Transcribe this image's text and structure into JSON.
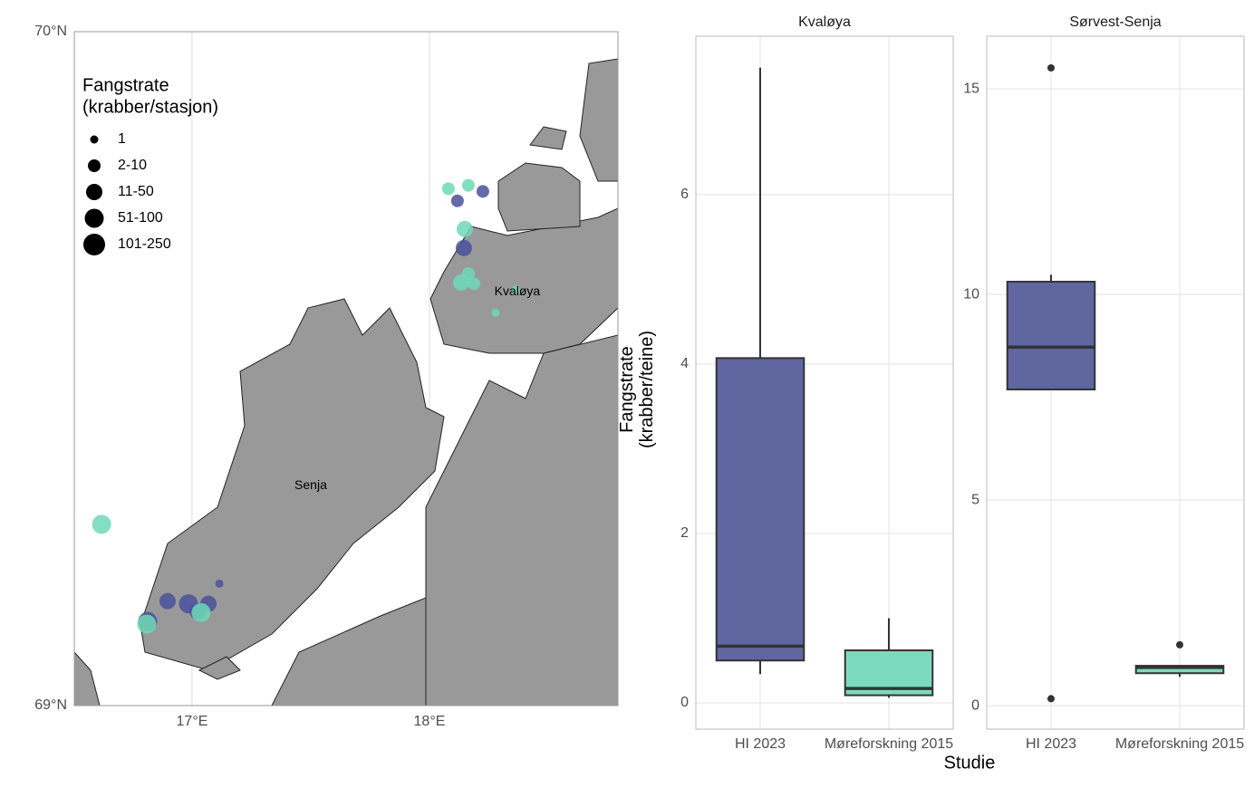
{
  "chart_data": [
    {
      "type": "map",
      "xlim": [
        16.504,
        18.794
      ],
      "ylim": [
        69,
        70
      ],
      "xticks": [
        {
          "value": 17,
          "label": "17°E"
        },
        {
          "value": 18,
          "label": "18°E"
        }
      ],
      "yticks": [
        {
          "value": 69,
          "label": "69°N"
        },
        {
          "value": 70,
          "label": "70°N"
        }
      ],
      "grid": true,
      "size_legend": {
        "title": [
          "Fangstrate",
          "(krabber/stasjon)"
        ],
        "labels": [
          "1",
          "2-10",
          "11-50",
          "51-100",
          "101-250"
        ]
      },
      "annotations": [
        {
          "text": "Kvaløya",
          "x": 18.37,
          "y": 69.614
        },
        {
          "text": "Senja",
          "x": 17.5,
          "y": 69.326
        }
      ],
      "series": [
        {
          "color": "#4a519a",
          "x": [
            18.225,
            18.118,
            18.145,
            17.115,
            16.897,
            16.985,
            17.023,
            17.069,
            16.813
          ],
          "y": [
            69.763,
            69.749,
            69.679,
            69.181,
            69.155,
            69.151,
            69.14,
            69.151,
            69.125
          ],
          "sizes": [
            1,
            1,
            2,
            0,
            2,
            3,
            2,
            2,
            3
          ]
        },
        {
          "color": "#6fd8b6",
          "x": [
            18.08,
            18.164,
            18.149,
            18.164,
            18.134,
            18.187,
            18.363,
            18.279,
            16.619,
            16.809,
            17.038
          ],
          "y": [
            69.767,
            69.772,
            69.707,
            69.641,
            69.628,
            69.626,
            69.617,
            69.583,
            69.269,
            69.121,
            69.138
          ],
          "sizes": [
            1,
            1,
            2,
            1,
            2,
            1,
            0,
            0,
            3,
            3,
            3
          ]
        }
      ]
    },
    {
      "type": "box",
      "title": "Kvaløya",
      "ylabel": [
        "Fangstrate",
        "(krabber/teine)"
      ],
      "xlabel": "Studie",
      "categories": [
        "HI 2023",
        "Møreforskning 2015"
      ],
      "ylim": [
        -0.31,
        7.87
      ],
      "yticks": [
        0,
        2,
        4,
        6
      ],
      "grid": true,
      "boxes": [
        {
          "color": "#5f66a0",
          "whisker_low": 0.34,
          "q1": 0.5,
          "median": 0.67,
          "q3": 4.07,
          "whisker_high": 7.5,
          "outliers": []
        },
        {
          "color": "#7ddbbd",
          "whisker_low": 0.06,
          "q1": 0.09,
          "median": 0.17,
          "q3": 0.62,
          "whisker_high": 1.0,
          "outliers": []
        }
      ]
    },
    {
      "type": "box",
      "title": "Sørvest-Senja",
      "categories": [
        "HI 2023",
        "Møreforskning 2015"
      ],
      "ylim": [
        -0.57,
        16.28
      ],
      "yticks": [
        0,
        5,
        10,
        15
      ],
      "grid": true,
      "boxes": [
        {
          "color": "#5f66a0",
          "whisker_low": 7.69,
          "q1": 7.69,
          "median": 8.72,
          "q3": 10.31,
          "whisker_high": 10.48,
          "outliers": [
            15.51,
            0.17
          ]
        },
        {
          "color": "#7ddbbd",
          "whisker_low": 0.7,
          "q1": 0.79,
          "median": 0.93,
          "q3": 0.97,
          "whisker_high": 0.97,
          "outliers": [
            1.48
          ]
        }
      ]
    }
  ]
}
